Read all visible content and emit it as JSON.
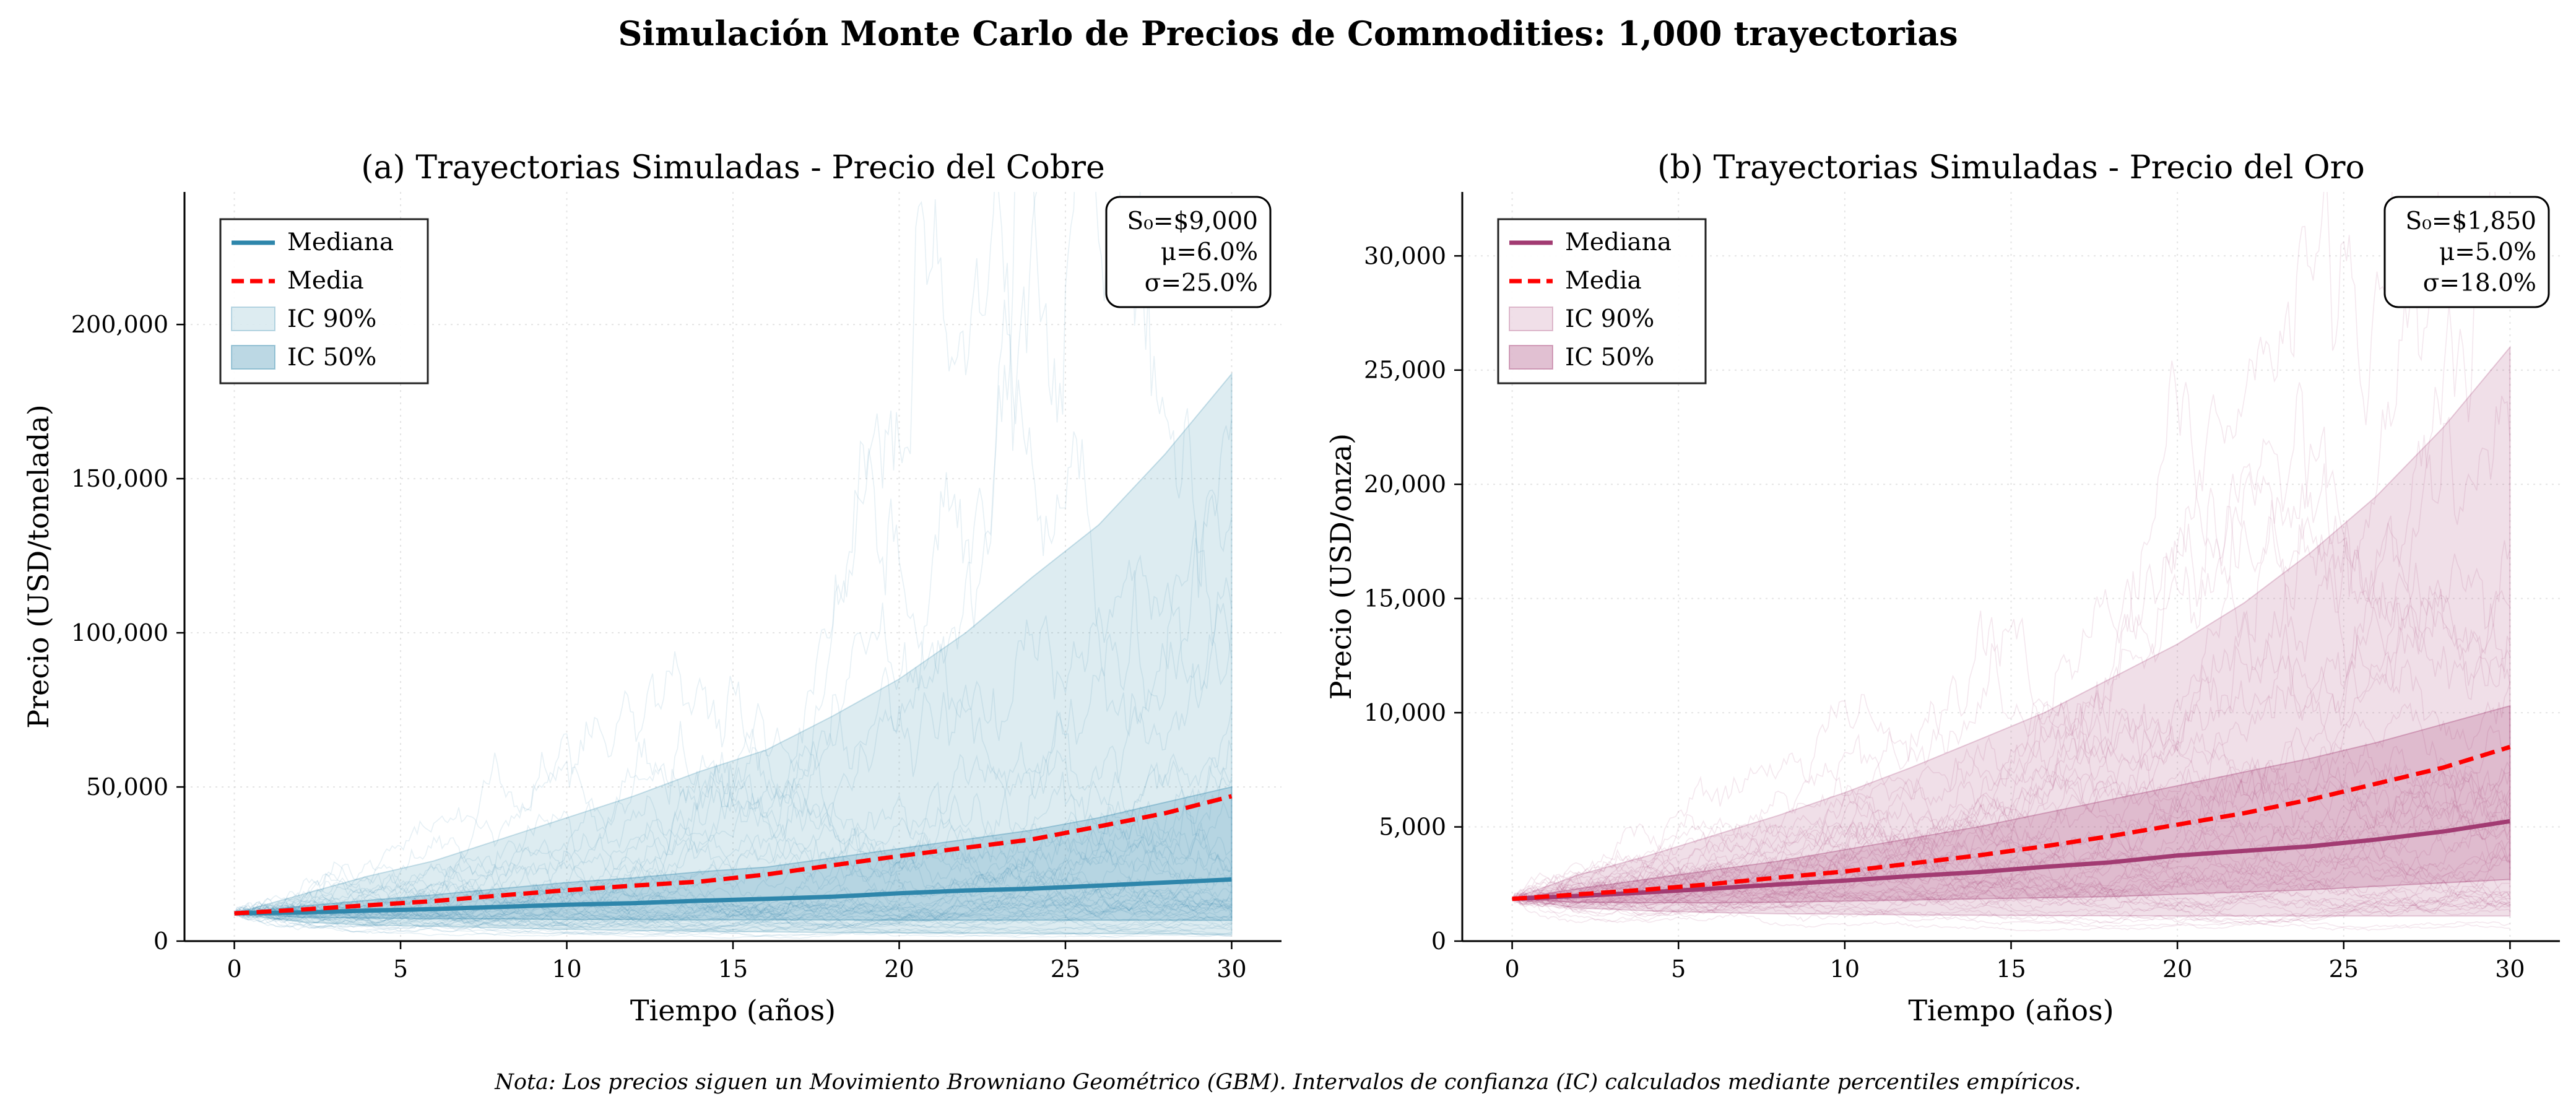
{
  "figure": {
    "suptitle": "Simulación Monte Carlo de Precios de Commodities: 1,000 trayectorias",
    "note": "Nota: Los precios siguen un Movimiento Browniano Geométrico (GBM). Intervalos de confianza (IC) calculados mediante percentiles empíricos."
  },
  "colors": {
    "copper": "#2e86ab",
    "gold": "#a23b72",
    "mean": "#ff0000",
    "grid": "#d9d9d9"
  },
  "chart_data": [
    {
      "type": "area",
      "title": "(a) Trayectorias Simuladas - Precio del Cobre",
      "xlabel": "Tiempo (años)",
      "ylabel": "Precio (USD/tonelada)",
      "xlim": [
        -1.5,
        31.5
      ],
      "ylim": [
        0,
        243000
      ],
      "xticks": [
        0,
        5,
        10,
        15,
        20,
        25,
        30
      ],
      "xtick_labels": [
        "0",
        "5",
        "10",
        "15",
        "20",
        "25",
        "30"
      ],
      "yticks": [
        0,
        50000,
        100000,
        150000,
        200000
      ],
      "ytick_labels": [
        "0",
        "50,000",
        "100,000",
        "150,000",
        "200,000"
      ],
      "grid": true,
      "legend_position": "top-left",
      "legend": [
        "Mediana",
        "Media",
        "IC 90%",
        "IC 50%"
      ],
      "annotation": [
        "S₀=$9,000",
        "μ=6.0%",
        "σ=25.0%"
      ],
      "params": {
        "S0": 9000,
        "mu": 0.06,
        "sigma": 0.25
      },
      "x": [
        0,
        2,
        4,
        6,
        8,
        10,
        12,
        14,
        16,
        18,
        20,
        22,
        24,
        26,
        28,
        30
      ],
      "series": [
        {
          "name": "Mediana",
          "values": [
            9000,
            9300,
            9900,
            10400,
            11100,
            11800,
            12300,
            13100,
            13700,
            14400,
            15500,
            16400,
            17000,
            18000,
            19000,
            20000
          ]
        },
        {
          "name": "Media",
          "values": [
            9000,
            10200,
            11600,
            13000,
            14800,
            16500,
            18000,
            19300,
            21600,
            24600,
            27600,
            30300,
            33000,
            37200,
            41500,
            47000
          ]
        },
        {
          "name": "IC 90% inferior",
          "values": [
            9000,
            6200,
            5200,
            4800,
            4300,
            3800,
            3500,
            3200,
            3000,
            2800,
            2700,
            2600,
            2500,
            2400,
            2300,
            2200
          ]
        },
        {
          "name": "IC 90% superior",
          "values": [
            9000,
            15000,
            21000,
            26000,
            33000,
            40000,
            47000,
            55000,
            62000,
            73000,
            85000,
            100000,
            118000,
            135000,
            158000,
            184000
          ]
        },
        {
          "name": "IC 50% inferior",
          "values": [
            9000,
            7800,
            7500,
            7300,
            7200,
            7000,
            7000,
            6900,
            6900,
            6900,
            6800,
            6800,
            6800,
            6800,
            6800,
            6700
          ]
        },
        {
          "name": "IC 50% superior",
          "values": [
            9000,
            11300,
            13200,
            15000,
            17000,
            19000,
            20500,
            22500,
            24000,
            27000,
            30000,
            33000,
            36000,
            40000,
            45000,
            50000
          ]
        }
      ]
    },
    {
      "type": "area",
      "title": "(b) Trayectorias Simuladas - Precio del Oro",
      "xlabel": "Tiempo (años)",
      "ylabel": "Precio (USD/onza)",
      "xlim": [
        -1.5,
        31.5
      ],
      "ylim": [
        0,
        32800
      ],
      "xticks": [
        0,
        5,
        10,
        15,
        20,
        25,
        30
      ],
      "xtick_labels": [
        "0",
        "5",
        "10",
        "15",
        "20",
        "25",
        "30"
      ],
      "yticks": [
        0,
        5000,
        10000,
        15000,
        20000,
        25000,
        30000
      ],
      "ytick_labels": [
        "0",
        "5,000",
        "10,000",
        "15,000",
        "20,000",
        "25,000",
        "30,000"
      ],
      "grid": true,
      "legend_position": "top-left",
      "legend": [
        "Mediana",
        "Media",
        "IC 90%",
        "IC 50%"
      ],
      "annotation": [
        "S₀=$1,850",
        "μ=5.0%",
        "σ=18.0%"
      ],
      "params": {
        "S0": 1850,
        "mu": 0.05,
        "sigma": 0.18
      },
      "x": [
        0,
        2,
        4,
        6,
        8,
        10,
        12,
        14,
        16,
        18,
        20,
        22,
        24,
        26,
        28,
        30
      ],
      "series": [
        {
          "name": "Mediana",
          "values": [
            1850,
            1980,
            2130,
            2300,
            2480,
            2650,
            2850,
            3020,
            3250,
            3450,
            3750,
            3950,
            4150,
            4450,
            4800,
            5250
          ]
        },
        {
          "name": "Media",
          "values": [
            1850,
            2050,
            2250,
            2500,
            2780,
            3050,
            3400,
            3750,
            4150,
            4600,
            5100,
            5600,
            6200,
            6900,
            7600,
            8500
          ]
        },
        {
          "name": "IC 90% inferior",
          "values": [
            1850,
            1450,
            1330,
            1250,
            1200,
            1180,
            1150,
            1130,
            1120,
            1110,
            1100,
            1100,
            1100,
            1100,
            1100,
            1100
          ]
        },
        {
          "name": "IC 90% superior",
          "values": [
            1850,
            2900,
            3700,
            4600,
            5500,
            6500,
            7600,
            8800,
            10000,
            11500,
            13000,
            14800,
            17000,
            19500,
            22500,
            26000
          ]
        },
        {
          "name": "IC 50% inferior",
          "values": [
            1850,
            1700,
            1680,
            1680,
            1700,
            1750,
            1800,
            1850,
            1900,
            1950,
            2050,
            2150,
            2250,
            2400,
            2550,
            2700
          ]
        },
        {
          "name": "IC 50% superior",
          "values": [
            1850,
            2300,
            2700,
            3100,
            3500,
            4000,
            4500,
            5000,
            5600,
            6200,
            6800,
            7400,
            8000,
            8700,
            9500,
            10300
          ]
        }
      ]
    }
  ]
}
